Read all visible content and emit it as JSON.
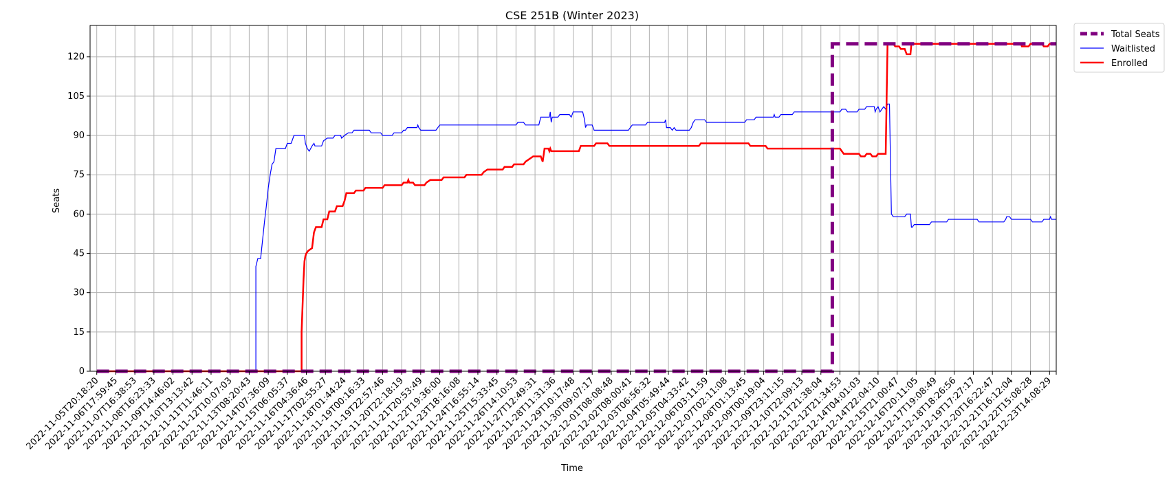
{
  "chart_data": {
    "type": "line",
    "title": "CSE 251B (Winter 2023)",
    "xlabel": "Time",
    "ylabel": "Seats",
    "ylim": [
      0,
      132
    ],
    "yticks": [
      0,
      15,
      30,
      45,
      60,
      75,
      90,
      105,
      120
    ],
    "grid": true,
    "legend_position": "outside top-right",
    "x_tick_labels": [
      "2022-11-05T20:18:20",
      "2022-11-06T17:59:45",
      "2022-11-07T16:38:53",
      "2022-11-08T16:23:33",
      "2022-11-09T14:46:02",
      "2022-11-10T13:13:42",
      "2022-11-11T11:46:11",
      "2022-11-12T10:07:03",
      "2022-11-13T08:20:43",
      "2022-11-14T07:36:09",
      "2022-11-15T06:05:37",
      "2022-11-16T04:36:46",
      "2022-11-17T02:55:27",
      "2022-11-18T01:44:24",
      "2022-11-19T00:16:33",
      "2022-11-19T22:57:46",
      "2022-11-20T22:18:19",
      "2022-11-21T20:53:49",
      "2022-11-22T19:36:00",
      "2022-11-23T18:16:08",
      "2022-11-24T16:55:14",
      "2022-11-25T15:33:45",
      "2022-11-26T14:10:53",
      "2022-11-27T12:49:31",
      "2022-11-28T11:31:36",
      "2022-11-29T10:17:48",
      "2022-11-30T09:07:17",
      "2022-12-01T08:08:48",
      "2022-12-02T08:00:41",
      "2022-12-03T06:56:32",
      "2022-12-04T05:49:44",
      "2022-12-05T04:33:42",
      "2022-12-06T03:11:59",
      "2022-12-07T02:11:08",
      "2022-12-08T01:13:45",
      "2022-12-09T00:19:04",
      "2022-12-09T23:11:15",
      "2022-12-10T22:09:13",
      "2022-12-11T21:38:04",
      "2022-12-12T21:34:53",
      "2022-12-14T04:01:03",
      "2022-12-14T22:04:10",
      "2022-12-15T21:00:47",
      "2022-12-16T20:11:05",
      "2022-12-17T19:08:49",
      "2022-12-18T18:26:56",
      "2022-12-19T17:27:17",
      "2022-12-20T16:22:47",
      "2022-12-21T16:12:04",
      "2022-12-22T15:08:28",
      "2022-12-23T14:08:29"
    ],
    "x_range_ticks": [
      0,
      50.35
    ],
    "series": [
      {
        "name": "Total Seats",
        "color": "#800080",
        "style": "dashed",
        "points": [
          [
            0,
            0
          ],
          [
            38.6,
            0
          ],
          [
            38.6,
            125
          ],
          [
            50.35,
            125
          ]
        ]
      },
      {
        "name": "Waitlisted",
        "color": "#0000ff",
        "style": "solid",
        "points": [
          [
            0,
            0
          ],
          [
            8.35,
            0
          ],
          [
            8.35,
            40
          ],
          [
            8.45,
            43
          ],
          [
            8.6,
            43
          ],
          [
            8.7,
            50
          ],
          [
            8.8,
            57
          ],
          [
            8.9,
            63
          ],
          [
            9.0,
            70
          ],
          [
            9.1,
            75
          ],
          [
            9.2,
            79
          ],
          [
            9.3,
            80
          ],
          [
            9.4,
            85
          ],
          [
            9.9,
            85
          ],
          [
            10.0,
            87
          ],
          [
            10.2,
            87
          ],
          [
            10.35,
            90
          ],
          [
            10.9,
            90
          ],
          [
            10.95,
            87
          ],
          [
            11.05,
            85
          ],
          [
            11.15,
            84
          ],
          [
            11.3,
            86
          ],
          [
            11.4,
            87
          ],
          [
            11.45,
            86
          ],
          [
            11.8,
            86
          ],
          [
            11.9,
            88
          ],
          [
            12.1,
            89
          ],
          [
            12.4,
            89
          ],
          [
            12.5,
            90
          ],
          [
            12.8,
            90
          ],
          [
            12.85,
            89
          ],
          [
            13.0,
            90
          ],
          [
            13.2,
            91
          ],
          [
            13.4,
            91
          ],
          [
            13.5,
            92
          ],
          [
            14.3,
            92
          ],
          [
            14.4,
            91
          ],
          [
            14.9,
            91
          ],
          [
            15.0,
            90
          ],
          [
            15.5,
            90
          ],
          [
            15.6,
            91
          ],
          [
            16.0,
            91
          ],
          [
            16.1,
            92
          ],
          [
            16.2,
            92
          ],
          [
            16.3,
            93
          ],
          [
            16.8,
            93
          ],
          [
            16.85,
            94
          ],
          [
            16.9,
            93
          ],
          [
            17.0,
            92
          ],
          [
            17.8,
            92
          ],
          [
            17.9,
            93
          ],
          [
            18.0,
            94
          ],
          [
            22.0,
            94
          ],
          [
            22.1,
            95
          ],
          [
            22.4,
            95
          ],
          [
            22.5,
            94
          ],
          [
            23.2,
            94
          ],
          [
            23.3,
            97
          ],
          [
            23.75,
            97
          ],
          [
            23.8,
            99
          ],
          [
            23.85,
            95
          ],
          [
            23.9,
            97
          ],
          [
            24.2,
            97
          ],
          [
            24.3,
            98
          ],
          [
            24.8,
            98
          ],
          [
            24.9,
            97
          ],
          [
            25.0,
            99
          ],
          [
            25.5,
            99
          ],
          [
            25.6,
            96
          ],
          [
            25.65,
            93
          ],
          [
            25.7,
            94
          ],
          [
            26.0,
            94
          ],
          [
            26.1,
            92
          ],
          [
            27.9,
            92
          ],
          [
            28.0,
            93
          ],
          [
            28.1,
            94
          ],
          [
            28.8,
            94
          ],
          [
            28.9,
            95
          ],
          [
            29.8,
            95
          ],
          [
            29.85,
            96
          ],
          [
            29.9,
            93
          ],
          [
            30.1,
            93
          ],
          [
            30.2,
            92
          ],
          [
            30.3,
            93
          ],
          [
            30.4,
            92
          ],
          [
            31.1,
            92
          ],
          [
            31.2,
            93
          ],
          [
            31.3,
            95
          ],
          [
            31.4,
            96
          ],
          [
            31.9,
            96
          ],
          [
            32.0,
            95
          ],
          [
            34.0,
            95
          ],
          [
            34.1,
            96
          ],
          [
            34.5,
            96
          ],
          [
            34.6,
            97
          ],
          [
            35.5,
            97
          ],
          [
            35.55,
            98
          ],
          [
            35.6,
            97
          ],
          [
            35.8,
            97
          ],
          [
            35.9,
            98
          ],
          [
            36.5,
            98
          ],
          [
            36.6,
            99
          ],
          [
            39.0,
            99
          ],
          [
            39.1,
            100
          ],
          [
            39.3,
            100
          ],
          [
            39.4,
            99
          ],
          [
            39.9,
            99
          ],
          [
            40.0,
            100
          ],
          [
            40.3,
            100
          ],
          [
            40.4,
            101
          ],
          [
            40.8,
            101
          ],
          [
            40.85,
            99
          ],
          [
            40.9,
            100
          ],
          [
            41.0,
            101
          ],
          [
            41.1,
            99
          ],
          [
            41.2,
            100
          ],
          [
            41.3,
            101
          ],
          [
            41.4,
            100
          ],
          [
            41.5,
            102
          ],
          [
            41.6,
            102
          ],
          [
            41.7,
            60
          ],
          [
            41.8,
            59
          ],
          [
            42.4,
            59
          ],
          [
            42.5,
            60
          ],
          [
            42.7,
            60
          ],
          [
            42.75,
            55
          ],
          [
            42.8,
            55
          ],
          [
            42.9,
            56
          ],
          [
            43.7,
            56
          ],
          [
            43.8,
            57
          ],
          [
            44.6,
            57
          ],
          [
            44.7,
            58
          ],
          [
            46.2,
            58
          ],
          [
            46.3,
            57
          ],
          [
            47.6,
            57
          ],
          [
            47.7,
            58
          ],
          [
            47.75,
            59
          ],
          [
            47.9,
            59
          ],
          [
            48.0,
            58
          ],
          [
            49.0,
            58
          ],
          [
            49.1,
            57
          ],
          [
            49.6,
            57
          ],
          [
            49.7,
            58
          ],
          [
            50.0,
            58
          ],
          [
            50.05,
            59
          ],
          [
            50.1,
            58
          ],
          [
            50.35,
            58
          ]
        ]
      },
      {
        "name": "Enrolled",
        "color": "#ff0000",
        "style": "solid",
        "points": [
          [
            0,
            0
          ],
          [
            10.75,
            0
          ],
          [
            10.75,
            15
          ],
          [
            10.8,
            25
          ],
          [
            10.85,
            35
          ],
          [
            10.9,
            42
          ],
          [
            10.95,
            44
          ],
          [
            11.0,
            45
          ],
          [
            11.1,
            46
          ],
          [
            11.3,
            47
          ],
          [
            11.35,
            50
          ],
          [
            11.4,
            53
          ],
          [
            11.5,
            55
          ],
          [
            11.8,
            55
          ],
          [
            11.9,
            58
          ],
          [
            12.1,
            58
          ],
          [
            12.2,
            61
          ],
          [
            12.5,
            61
          ],
          [
            12.6,
            63
          ],
          [
            12.9,
            63
          ],
          [
            13.0,
            65
          ],
          [
            13.1,
            68
          ],
          [
            13.5,
            68
          ],
          [
            13.6,
            69
          ],
          [
            14.0,
            69
          ],
          [
            14.1,
            70
          ],
          [
            15.0,
            70
          ],
          [
            15.1,
            71
          ],
          [
            16.0,
            71
          ],
          [
            16.1,
            72
          ],
          [
            16.3,
            72
          ],
          [
            16.35,
            73
          ],
          [
            16.4,
            72
          ],
          [
            16.6,
            72
          ],
          [
            16.7,
            71
          ],
          [
            17.2,
            71
          ],
          [
            17.3,
            72
          ],
          [
            17.5,
            73
          ],
          [
            18.1,
            73
          ],
          [
            18.2,
            74
          ],
          [
            19.3,
            74
          ],
          [
            19.4,
            75
          ],
          [
            20.2,
            75
          ],
          [
            20.3,
            76
          ],
          [
            20.5,
            77
          ],
          [
            21.3,
            77
          ],
          [
            21.4,
            78
          ],
          [
            21.8,
            78
          ],
          [
            21.9,
            79
          ],
          [
            22.4,
            79
          ],
          [
            22.5,
            80
          ],
          [
            22.7,
            81
          ],
          [
            22.9,
            82
          ],
          [
            23.3,
            82
          ],
          [
            23.4,
            80
          ],
          [
            23.5,
            85
          ],
          [
            23.7,
            85
          ],
          [
            23.75,
            84
          ],
          [
            23.8,
            85
          ],
          [
            23.85,
            84
          ],
          [
            25.3,
            84
          ],
          [
            25.4,
            86
          ],
          [
            26.1,
            86
          ],
          [
            26.2,
            87
          ],
          [
            26.8,
            87
          ],
          [
            26.9,
            86
          ],
          [
            31.6,
            86
          ],
          [
            31.7,
            87
          ],
          [
            34.2,
            87
          ],
          [
            34.3,
            86
          ],
          [
            35.1,
            86
          ],
          [
            35.2,
            85
          ],
          [
            39.0,
            85
          ],
          [
            39.1,
            84
          ],
          [
            39.2,
            83
          ],
          [
            40.0,
            83
          ],
          [
            40.1,
            82
          ],
          [
            40.3,
            82
          ],
          [
            40.4,
            83
          ],
          [
            40.6,
            83
          ],
          [
            40.7,
            82
          ],
          [
            40.9,
            82
          ],
          [
            41.0,
            83
          ],
          [
            41.4,
            83
          ],
          [
            41.5,
            125
          ],
          [
            41.8,
            125
          ],
          [
            41.9,
            124
          ],
          [
            42.1,
            124
          ],
          [
            42.2,
            123
          ],
          [
            42.4,
            123
          ],
          [
            42.5,
            121
          ],
          [
            42.7,
            121
          ],
          [
            42.75,
            125
          ],
          [
            48.5,
            125
          ],
          [
            48.55,
            124
          ],
          [
            48.9,
            124
          ],
          [
            49.0,
            125
          ],
          [
            49.6,
            125
          ],
          [
            49.7,
            124
          ],
          [
            49.9,
            124
          ],
          [
            50.0,
            125
          ],
          [
            50.35,
            125
          ]
        ]
      }
    ]
  }
}
